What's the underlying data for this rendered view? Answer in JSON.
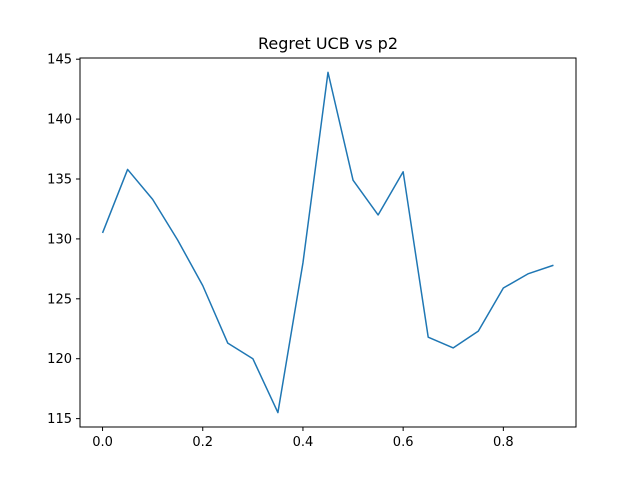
{
  "chart_data": {
    "type": "line",
    "title": "Regret UCB vs p2",
    "xlabel": "",
    "ylabel": "",
    "x": [
      0.0,
      0.05,
      0.1,
      0.15,
      0.2,
      0.25,
      0.3,
      0.35,
      0.4,
      0.45,
      0.5,
      0.55,
      0.6,
      0.65,
      0.7,
      0.75,
      0.8,
      0.85,
      0.9
    ],
    "series": [
      {
        "name": "",
        "color": "#1f77b4",
        "values": [
          130.5,
          135.8,
          133.3,
          129.9,
          126.1,
          121.3,
          120.0,
          115.5,
          128.0,
          143.9,
          134.9,
          132.0,
          135.6,
          121.8,
          120.9,
          122.3,
          125.9,
          127.1,
          127.8
        ]
      }
    ],
    "xlim": [
      -0.045,
      0.945
    ],
    "ylim": [
      114.3,
      145.1
    ],
    "xticks": [
      0.0,
      0.2,
      0.4,
      0.6,
      0.8
    ],
    "xtick_labels": [
      "0.0",
      "0.2",
      "0.4",
      "0.6",
      "0.8"
    ],
    "yticks": [
      115,
      120,
      125,
      130,
      135,
      140,
      145
    ],
    "ytick_labels": [
      "115",
      "120",
      "125",
      "130",
      "135",
      "140",
      "145"
    ],
    "grid": false,
    "legend": "none"
  }
}
